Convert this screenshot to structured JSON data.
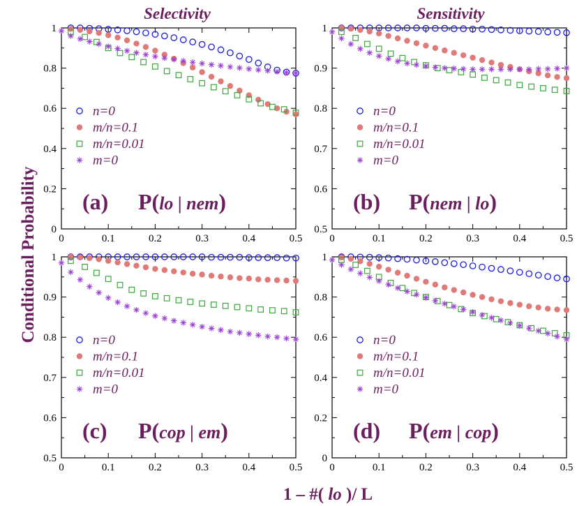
{
  "figure": {
    "column_titles": [
      "Selectivity",
      "Sensitivity"
    ],
    "ylabel": "Conditional Probability",
    "xlabel_prefix": "1 – #( ",
    "xlabel_var": "lo",
    "xlabel_suffix": " )/ L",
    "colors": {
      "n0": "#1a1adc",
      "mn01": "#e07a78",
      "mn001": "#3aa83a",
      "m0": "#9b3fd6",
      "label": "#6a1e5e"
    },
    "legend_entries": [
      "n=0",
      "m/n=0.1",
      "m/n=0.01",
      "m=0"
    ],
    "legend_markers": [
      "open-circle",
      "filled-circle",
      "open-square",
      "asterisk"
    ]
  },
  "chart_data": [
    {
      "type": "scatter",
      "panel": "(a)",
      "label_pre": "P(",
      "label_a": "lo",
      "label_sep": " | ",
      "label_b": "nem",
      "label_post": ")",
      "xlim": [
        0,
        0.5
      ],
      "ylim": [
        0,
        1
      ],
      "xticks": [
        "0",
        "0.1",
        "0.2",
        "0.3",
        "0.4",
        "0.5"
      ],
      "yticks": [
        "0",
        "0.2",
        "0.4",
        "0.6",
        "0.8",
        "1"
      ],
      "series": [
        {
          "name": "n=0",
          "marker": "open-circle",
          "color": "#1a1adc",
          "x": [
            0.02,
            0.04,
            0.06,
            0.08,
            0.1,
            0.12,
            0.14,
            0.16,
            0.18,
            0.2,
            0.22,
            0.24,
            0.26,
            0.28,
            0.3,
            0.32,
            0.34,
            0.36,
            0.38,
            0.4,
            0.42,
            0.44,
            0.46,
            0.48,
            0.5
          ],
          "y": [
            1.0,
            1.0,
            0.998,
            0.996,
            0.993,
            0.99,
            0.986,
            0.981,
            0.975,
            0.968,
            0.96,
            0.951,
            0.941,
            0.93,
            0.918,
            0.905,
            0.891,
            0.876,
            0.86,
            0.843,
            0.825,
            0.806,
            0.79,
            0.78,
            0.775
          ]
        },
        {
          "name": "m/n=0.1",
          "marker": "filled-circle",
          "color": "#e07a78",
          "x": [
            0.02,
            0.04,
            0.06,
            0.08,
            0.1,
            0.12,
            0.14,
            0.16,
            0.18,
            0.2,
            0.22,
            0.24,
            0.26,
            0.28,
            0.3,
            0.32,
            0.34,
            0.36,
            0.38,
            0.4,
            0.42,
            0.44,
            0.46,
            0.48,
            0.5
          ],
          "y": [
            0.995,
            0.99,
            0.983,
            0.975,
            0.964,
            0.952,
            0.938,
            0.922,
            0.905,
            0.887,
            0.867,
            0.847,
            0.825,
            0.803,
            0.78,
            0.757,
            0.734,
            0.711,
            0.688,
            0.665,
            0.643,
            0.621,
            0.6,
            0.583,
            0.57
          ]
        },
        {
          "name": "m/n=0.01",
          "marker": "open-square",
          "color": "#3aa83a",
          "x": [
            0.02,
            0.05,
            0.075,
            0.1,
            0.125,
            0.15,
            0.175,
            0.2,
            0.225,
            0.25,
            0.275,
            0.3,
            0.325,
            0.35,
            0.375,
            0.4,
            0.425,
            0.45,
            0.475,
            0.5
          ],
          "y": [
            0.98,
            0.955,
            0.93,
            0.9,
            0.875,
            0.855,
            0.83,
            0.808,
            0.785,
            0.765,
            0.745,
            0.725,
            0.705,
            0.685,
            0.665,
            0.645,
            0.625,
            0.607,
            0.595,
            0.578
          ]
        },
        {
          "name": "m=0",
          "marker": "asterisk",
          "color": "#9b3fd6",
          "x": [
            0.0,
            0.02,
            0.04,
            0.06,
            0.08,
            0.1,
            0.12,
            0.14,
            0.16,
            0.18,
            0.2,
            0.22,
            0.24,
            0.26,
            0.28,
            0.3,
            0.32,
            0.34,
            0.36,
            0.38,
            0.4,
            0.42,
            0.44,
            0.46,
            0.48,
            0.5
          ],
          "y": [
            0.985,
            0.96,
            0.945,
            0.932,
            0.92,
            0.908,
            0.897,
            0.886,
            0.876,
            0.867,
            0.858,
            0.85,
            0.843,
            0.836,
            0.829,
            0.823,
            0.817,
            0.812,
            0.806,
            0.801,
            0.796,
            0.791,
            0.787,
            0.782,
            0.778,
            0.775
          ]
        }
      ]
    },
    {
      "type": "scatter",
      "panel": "(b)",
      "label_pre": "P(",
      "label_a": "nem",
      "label_sep": " | ",
      "label_b": "lo",
      "label_post": ")",
      "xlim": [
        0,
        0.5
      ],
      "ylim": [
        0.5,
        1
      ],
      "xticks": [
        "0",
        "0.1",
        "0.2",
        "0.3",
        "0.4",
        "0.5"
      ],
      "yticks": [
        "0.5",
        "0.6",
        "0.7",
        "0.8",
        "0.9",
        "1"
      ],
      "series": [
        {
          "name": "n=0",
          "marker": "open-circle",
          "color": "#1a1adc",
          "x": [
            0.02,
            0.04,
            0.06,
            0.08,
            0.1,
            0.12,
            0.14,
            0.16,
            0.18,
            0.2,
            0.22,
            0.24,
            0.26,
            0.28,
            0.3,
            0.32,
            0.34,
            0.36,
            0.38,
            0.4,
            0.42,
            0.44,
            0.46,
            0.48,
            0.5
          ],
          "y": [
            1.0,
            1.0,
            1.0,
            1.0,
            1.0,
            1.0,
            1.0,
            1.0,
            1.0,
            0.999,
            0.999,
            0.999,
            0.998,
            0.998,
            0.997,
            0.997,
            0.996,
            0.995,
            0.994,
            0.993,
            0.992,
            0.991,
            0.99,
            0.989,
            0.988
          ]
        },
        {
          "name": "m/n=0.1",
          "marker": "filled-circle",
          "color": "#e07a78",
          "x": [
            0.02,
            0.04,
            0.06,
            0.08,
            0.1,
            0.12,
            0.14,
            0.16,
            0.18,
            0.2,
            0.22,
            0.24,
            0.26,
            0.28,
            0.3,
            0.32,
            0.34,
            0.36,
            0.38,
            0.4,
            0.42,
            0.44,
            0.46,
            0.48,
            0.5
          ],
          "y": [
            1.0,
            0.998,
            0.995,
            0.991,
            0.986,
            0.98,
            0.974,
            0.968,
            0.962,
            0.956,
            0.95,
            0.944,
            0.938,
            0.932,
            0.926,
            0.92,
            0.914,
            0.908,
            0.903,
            0.897,
            0.892,
            0.887,
            0.882,
            0.878,
            0.875
          ]
        },
        {
          "name": "m/n=0.01",
          "marker": "open-square",
          "color": "#3aa83a",
          "x": [
            0.02,
            0.05,
            0.075,
            0.1,
            0.125,
            0.15,
            0.175,
            0.2,
            0.225,
            0.25,
            0.275,
            0.3,
            0.325,
            0.35,
            0.375,
            0.4,
            0.425,
            0.45,
            0.475,
            0.5
          ],
          "y": [
            0.99,
            0.975,
            0.96,
            0.948,
            0.936,
            0.925,
            0.915,
            0.907,
            0.9,
            0.895,
            0.89,
            0.884,
            0.876,
            0.87,
            0.864,
            0.858,
            0.854,
            0.85,
            0.846,
            0.843
          ]
        },
        {
          "name": "m=0",
          "marker": "asterisk",
          "color": "#9b3fd6",
          "x": [
            0.0,
            0.02,
            0.04,
            0.06,
            0.08,
            0.1,
            0.12,
            0.14,
            0.16,
            0.18,
            0.2,
            0.22,
            0.24,
            0.26,
            0.28,
            0.3,
            0.32,
            0.34,
            0.36,
            0.38,
            0.4,
            0.42,
            0.44,
            0.46,
            0.48,
            0.5
          ],
          "y": [
            0.99,
            0.974,
            0.96,
            0.948,
            0.938,
            0.93,
            0.923,
            0.917,
            0.912,
            0.908,
            0.905,
            0.902,
            0.9,
            0.899,
            0.898,
            0.897,
            0.897,
            0.897,
            0.897,
            0.897,
            0.897,
            0.897,
            0.898,
            0.898,
            0.899,
            0.9
          ]
        }
      ]
    },
    {
      "type": "scatter",
      "panel": "(c)",
      "label_pre": "P(",
      "label_a": "cop",
      "label_sep": " | ",
      "label_b": "em",
      "label_post": ")",
      "xlim": [
        0,
        0.5
      ],
      "ylim": [
        0.5,
        1
      ],
      "xticks": [
        "0",
        "0.1",
        "0.2",
        "0.3",
        "0.4",
        "0.5"
      ],
      "yticks": [
        "0.5",
        "0.6",
        "0.7",
        "0.8",
        "0.9",
        "1"
      ],
      "series": [
        {
          "name": "n=0",
          "marker": "open-circle",
          "color": "#1a1adc",
          "x": [
            0.02,
            0.04,
            0.06,
            0.08,
            0.1,
            0.12,
            0.14,
            0.16,
            0.18,
            0.2,
            0.22,
            0.24,
            0.26,
            0.28,
            0.3,
            0.32,
            0.34,
            0.36,
            0.38,
            0.4,
            0.42,
            0.44,
            0.46,
            0.48,
            0.5
          ],
          "y": [
            1.0,
            1.0,
            1.0,
            1.0,
            1.0,
            1.0,
            1.0,
            1.0,
            1.0,
            1.0,
            1.0,
            1.0,
            1.0,
            1.0,
            1.0,
            0.999,
            0.999,
            0.999,
            0.999,
            0.998,
            0.998,
            0.998,
            0.998,
            0.997,
            0.997
          ]
        },
        {
          "name": "m/n=0.1",
          "marker": "filled-circle",
          "color": "#e07a78",
          "x": [
            0.02,
            0.04,
            0.06,
            0.08,
            0.1,
            0.12,
            0.14,
            0.16,
            0.18,
            0.2,
            0.22,
            0.24,
            0.26,
            0.28,
            0.3,
            0.32,
            0.34,
            0.36,
            0.38,
            0.4,
            0.42,
            0.44,
            0.46,
            0.48,
            0.5
          ],
          "y": [
            1.0,
            0.999,
            0.997,
            0.994,
            0.99,
            0.986,
            0.982,
            0.978,
            0.974,
            0.97,
            0.967,
            0.964,
            0.961,
            0.958,
            0.956,
            0.953,
            0.951,
            0.949,
            0.947,
            0.946,
            0.944,
            0.943,
            0.942,
            0.941,
            0.94
          ]
        },
        {
          "name": "m/n=0.01",
          "marker": "open-square",
          "color": "#3aa83a",
          "x": [
            0.02,
            0.05,
            0.075,
            0.1,
            0.125,
            0.15,
            0.175,
            0.2,
            0.225,
            0.25,
            0.275,
            0.3,
            0.325,
            0.35,
            0.375,
            0.4,
            0.425,
            0.45,
            0.475,
            0.5
          ],
          "y": [
            0.99,
            0.975,
            0.96,
            0.945,
            0.93,
            0.918,
            0.909,
            0.902,
            0.897,
            0.892,
            0.888,
            0.884,
            0.881,
            0.878,
            0.875,
            0.872,
            0.869,
            0.867,
            0.865,
            0.862
          ]
        },
        {
          "name": "m=0",
          "marker": "asterisk",
          "color": "#9b3fd6",
          "x": [
            0.0,
            0.02,
            0.04,
            0.06,
            0.08,
            0.1,
            0.12,
            0.14,
            0.16,
            0.18,
            0.2,
            0.22,
            0.24,
            0.26,
            0.28,
            0.3,
            0.32,
            0.34,
            0.36,
            0.38,
            0.4,
            0.42,
            0.44,
            0.46,
            0.48,
            0.5
          ],
          "y": [
            0.985,
            0.962,
            0.943,
            0.926,
            0.911,
            0.898,
            0.887,
            0.877,
            0.868,
            0.86,
            0.853,
            0.847,
            0.841,
            0.836,
            0.831,
            0.826,
            0.822,
            0.818,
            0.814,
            0.811,
            0.808,
            0.805,
            0.802,
            0.8,
            0.797,
            0.795
          ]
        }
      ]
    },
    {
      "type": "scatter",
      "panel": "(d)",
      "label_pre": "P(",
      "label_a": "em",
      "label_sep": " | ",
      "label_b": "cop",
      "label_post": ")",
      "xlim": [
        0,
        0.5
      ],
      "ylim": [
        0,
        1
      ],
      "xticks": [
        "0",
        "0.1",
        "0.2",
        "0.3",
        "0.4",
        "0.5"
      ],
      "yticks": [
        "0",
        "0.2",
        "0.4",
        "0.6",
        "0.8",
        "1"
      ],
      "series": [
        {
          "name": "n=0",
          "marker": "open-circle",
          "color": "#1a1adc",
          "x": [
            0.02,
            0.04,
            0.06,
            0.08,
            0.1,
            0.12,
            0.14,
            0.16,
            0.18,
            0.2,
            0.22,
            0.24,
            0.26,
            0.28,
            0.3,
            0.32,
            0.34,
            0.36,
            0.38,
            0.4,
            0.42,
            0.44,
            0.46,
            0.48,
            0.5
          ],
          "y": [
            1.0,
            1.0,
            0.999,
            0.998,
            0.996,
            0.994,
            0.991,
            0.988,
            0.984,
            0.98,
            0.976,
            0.971,
            0.966,
            0.961,
            0.955,
            0.949,
            0.943,
            0.937,
            0.93,
            0.923,
            0.916,
            0.909,
            0.902,
            0.895,
            0.89
          ]
        },
        {
          "name": "m/n=0.1",
          "marker": "filled-circle",
          "color": "#e07a78",
          "x": [
            0.02,
            0.04,
            0.06,
            0.08,
            0.1,
            0.12,
            0.14,
            0.16,
            0.18,
            0.2,
            0.22,
            0.24,
            0.26,
            0.28,
            0.3,
            0.32,
            0.34,
            0.36,
            0.38,
            0.4,
            0.42,
            0.44,
            0.46,
            0.48,
            0.5
          ],
          "y": [
            0.998,
            0.99,
            0.978,
            0.965,
            0.951,
            0.936,
            0.921,
            0.906,
            0.891,
            0.876,
            0.862,
            0.848,
            0.835,
            0.823,
            0.811,
            0.8,
            0.789,
            0.779,
            0.77,
            0.762,
            0.754,
            0.748,
            0.742,
            0.738,
            0.735
          ]
        },
        {
          "name": "m/n=0.01",
          "marker": "open-square",
          "color": "#3aa83a",
          "x": [
            0.02,
            0.05,
            0.075,
            0.1,
            0.125,
            0.15,
            0.175,
            0.2,
            0.225,
            0.25,
            0.275,
            0.3,
            0.325,
            0.35,
            0.375,
            0.4,
            0.425,
            0.45,
            0.475,
            0.5
          ],
          "y": [
            0.985,
            0.96,
            0.93,
            0.9,
            0.87,
            0.845,
            0.82,
            0.8,
            0.78,
            0.76,
            0.74,
            0.72,
            0.705,
            0.69,
            0.675,
            0.66,
            0.645,
            0.632,
            0.62,
            0.61
          ]
        },
        {
          "name": "m=0",
          "marker": "asterisk",
          "color": "#9b3fd6",
          "x": [
            0.0,
            0.02,
            0.04,
            0.06,
            0.08,
            0.1,
            0.12,
            0.14,
            0.16,
            0.18,
            0.2,
            0.22,
            0.24,
            0.26,
            0.28,
            0.3,
            0.32,
            0.34,
            0.36,
            0.38,
            0.4,
            0.42,
            0.44,
            0.46,
            0.48,
            0.5
          ],
          "y": [
            0.985,
            0.96,
            0.938,
            0.918,
            0.898,
            0.88,
            0.862,
            0.845,
            0.828,
            0.812,
            0.797,
            0.782,
            0.767,
            0.753,
            0.739,
            0.725,
            0.711,
            0.697,
            0.684,
            0.671,
            0.658,
            0.645,
            0.632,
            0.619,
            0.604,
            0.59
          ]
        }
      ]
    }
  ]
}
